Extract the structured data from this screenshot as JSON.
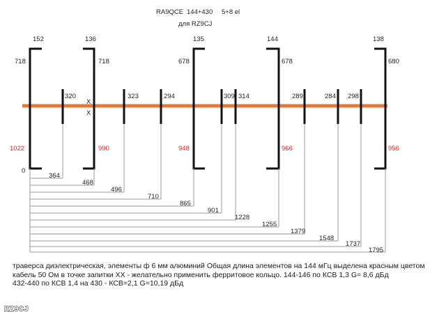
{
  "title": {
    "line1_call": "RA9QCE",
    "line1_band": "144+430",
    "line1_elements": "5+8 el",
    "line2": "для  RZ9CJ"
  },
  "colors": {
    "boom": "#e07a3a",
    "element": "#111111",
    "red_label": "#dd2222",
    "dim_line": "#999999"
  },
  "vhf_elements": [
    {
      "top_label": "152",
      "upper_half": "718",
      "lower_half": "1022",
      "zero": "0"
    },
    {
      "top_label": "136",
      "upper_half": "718",
      "lower_half": "990",
      "feed": "X"
    },
    {
      "top_label": "135",
      "upper_half": "678",
      "lower_half": "948"
    },
    {
      "top_label": "144",
      "upper_half": "678",
      "lower_half": "966"
    },
    {
      "top_label": "138",
      "upper_half": "680",
      "lower_half": "956"
    }
  ],
  "uhf_elements": [
    "320",
    "323",
    "294",
    "309",
    "314",
    "289",
    "284",
    "298"
  ],
  "spacings": [
    "364",
    "468",
    "496",
    "710",
    "865",
    "901",
    "1228",
    "1255",
    "1379",
    "1548",
    "1737",
    "1795"
  ],
  "notes": [
    "траверса диэлектрическая,   элементы ф 6 мм  алюминий  Общая длина элементов на 144 мГц выделена красным цветом",
    "кабель 50 Ом в точке запитки XX - желательно применить ферритовое кольцо. 144-146 по КСВ 1,3 G= 8,6 дБд",
    "432-440 по КСВ 1,4  на 430 - КСВ=2,1  G=10,19 дБд"
  ],
  "stamp": "RZ9CJ"
}
